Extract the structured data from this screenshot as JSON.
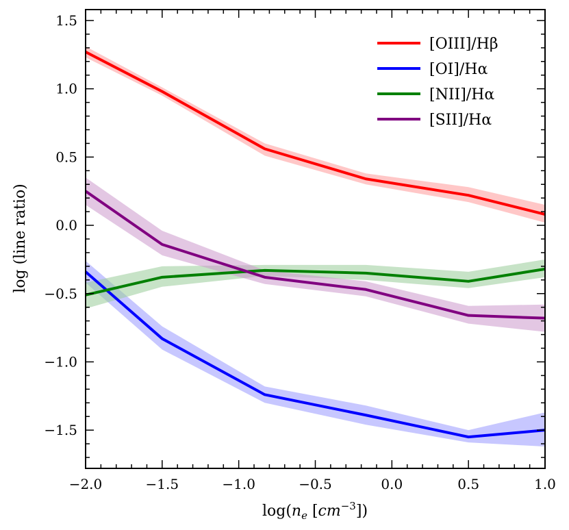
{
  "chart_data": {
    "type": "line",
    "title": "",
    "xlabel": "log(n_e [cm^-3])",
    "ylabel": "log  (line ratio)",
    "xlim": [
      -2.0,
      1.0
    ],
    "ylim": [
      -1.78,
      1.58
    ],
    "x_ticks": [
      -2.0,
      -1.5,
      -1.0,
      -0.5,
      0.0,
      0.5,
      1.0
    ],
    "x_tick_labels": [
      "−2.0",
      "−1.5",
      "−1.0",
      "−0.5",
      "0.0",
      "0.5",
      "1.0"
    ],
    "y_ticks": [
      -1.5,
      -1.0,
      -0.5,
      0.0,
      0.5,
      1.0,
      1.5
    ],
    "y_tick_labels": [
      "−1.5",
      "−1.0",
      "−0.5",
      "0.0",
      "0.5",
      "1.0",
      "1.5"
    ],
    "x_minor_step": 0.1,
    "y_minor_step": 0.1,
    "grid": false,
    "legend_position": "top-right",
    "series": [
      {
        "name": "[OIII]/Hβ",
        "color": "#ff0000",
        "band_color": "#ff9999",
        "x": [
          -2.0,
          -1.5,
          -0.83,
          -0.17,
          0.5,
          1.0
        ],
        "y": [
          1.27,
          0.98,
          0.56,
          0.34,
          0.22,
          0.08
        ],
        "lower": [
          1.23,
          0.95,
          0.51,
          0.3,
          0.17,
          0.02
        ],
        "upper": [
          1.31,
          1.01,
          0.6,
          0.38,
          0.28,
          0.15
        ]
      },
      {
        "name": "[OI]/Hα",
        "color": "#0000ff",
        "band_color": "#9999ff",
        "x": [
          -2.0,
          -1.5,
          -0.83,
          -0.17,
          0.5,
          1.0
        ],
        "y": [
          -0.34,
          -0.83,
          -1.24,
          -1.39,
          -1.55,
          -1.5
        ],
        "lower": [
          -0.42,
          -0.91,
          -1.3,
          -1.46,
          -1.59,
          -1.62
        ],
        "upper": [
          -0.26,
          -0.74,
          -1.18,
          -1.32,
          -1.5,
          -1.37
        ]
      },
      {
        "name": "[NII]/Hα",
        "color": "#008000",
        "band_color": "#99cc99",
        "x": [
          -2.0,
          -1.5,
          -0.83,
          -0.17,
          0.5,
          1.0
        ],
        "y": [
          -0.51,
          -0.38,
          -0.33,
          -0.35,
          -0.41,
          -0.32
        ],
        "lower": [
          -0.61,
          -0.45,
          -0.37,
          -0.4,
          -0.46,
          -0.38
        ],
        "upper": [
          -0.42,
          -0.3,
          -0.29,
          -0.29,
          -0.34,
          -0.25
        ]
      },
      {
        "name": "[SII]/Hα",
        "color": "#800080",
        "band_color": "#cc99cc",
        "x": [
          -2.0,
          -1.5,
          -0.83,
          -0.17,
          0.5,
          1.0
        ],
        "y": [
          0.25,
          -0.14,
          -0.38,
          -0.47,
          -0.66,
          -0.68
        ],
        "lower": [
          0.15,
          -0.22,
          -0.43,
          -0.52,
          -0.72,
          -0.78
        ],
        "upper": [
          0.35,
          -0.04,
          -0.33,
          -0.41,
          -0.59,
          -0.58
        ]
      }
    ]
  }
}
